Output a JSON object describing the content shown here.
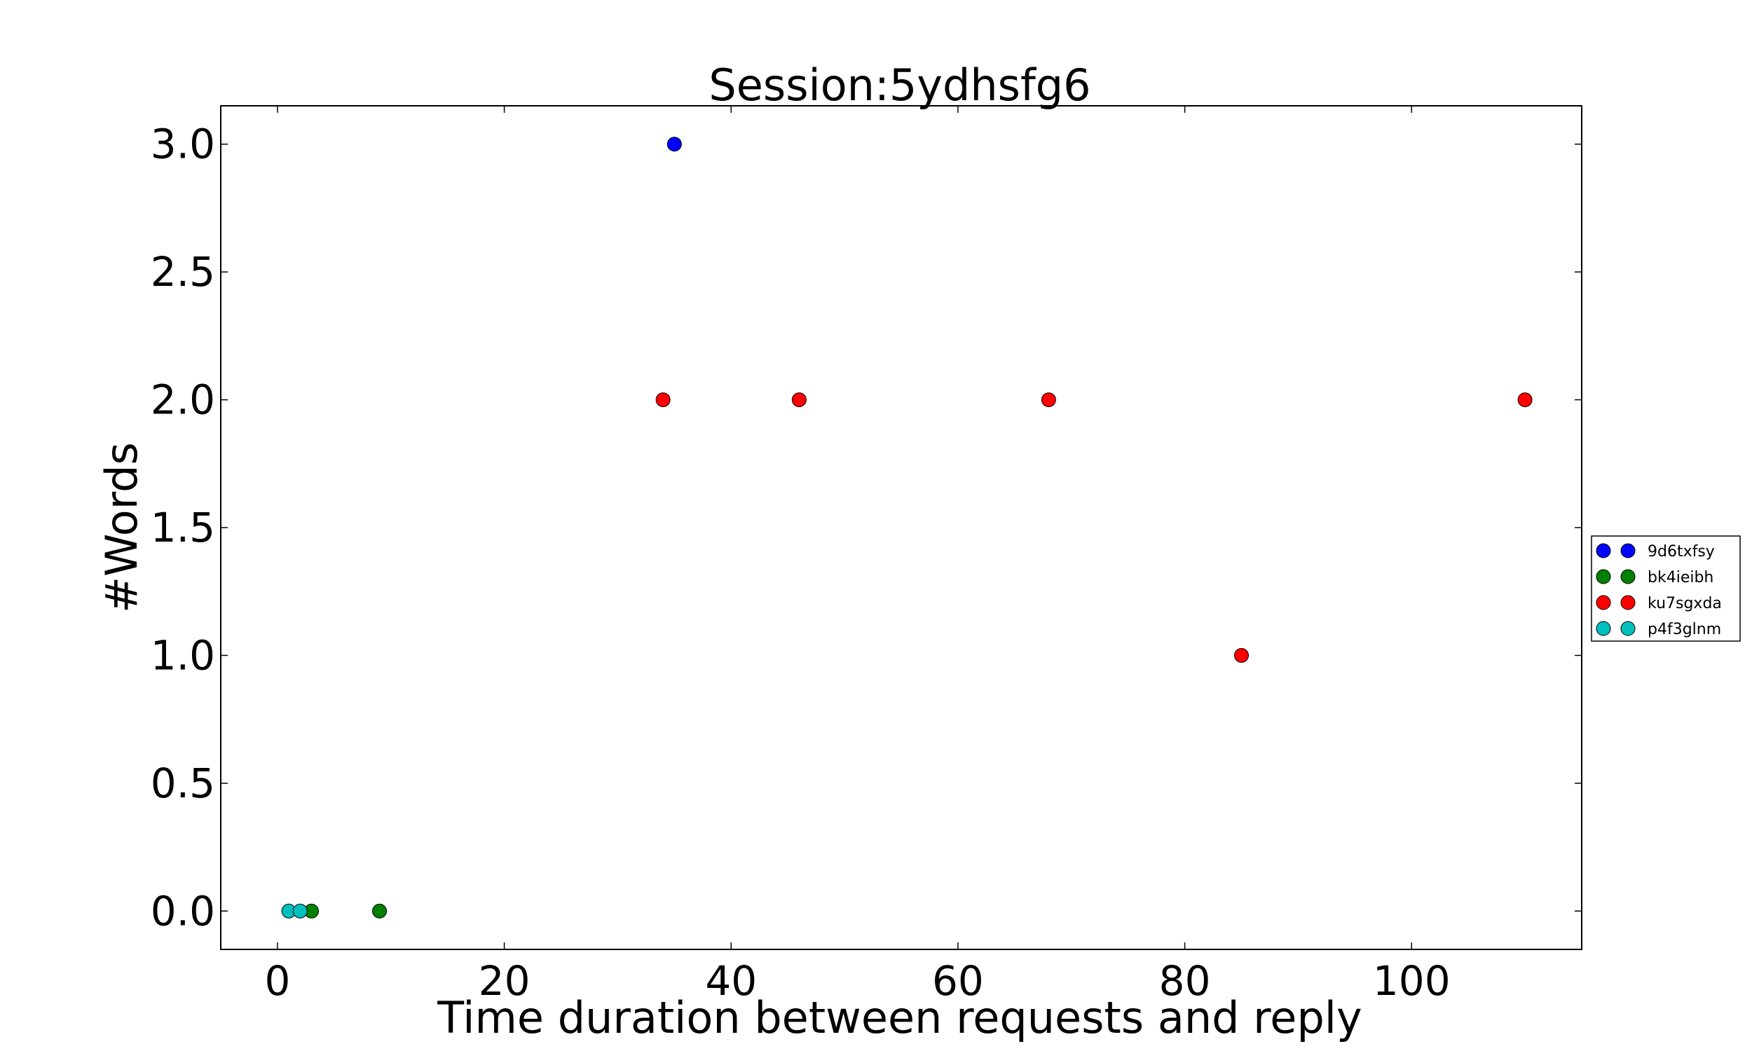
{
  "chart_data": {
    "type": "scatter",
    "title": "Session:5ydhsfg6",
    "xlabel": "Time duration between requests and reply",
    "ylabel": "#Words",
    "xlim": [
      -5,
      115
    ],
    "ylim": [
      -0.15,
      3.15
    ],
    "xticks": [
      0,
      20,
      40,
      60,
      80,
      100
    ],
    "yticks": [
      0.0,
      0.5,
      1.0,
      1.5,
      2.0,
      2.5,
      3.0
    ],
    "xtick_labels": [
      "0",
      "20",
      "40",
      "60",
      "80",
      "100"
    ],
    "ytick_labels": [
      "0.0",
      "0.5",
      "1.0",
      "1.5",
      "2.0",
      "2.5",
      "3.0"
    ],
    "grid": false,
    "legend_position": "right",
    "series": [
      {
        "name": "9d6txfsy",
        "color": "#0000ff",
        "points": [
          [
            35,
            3
          ]
        ]
      },
      {
        "name": "bk4ieibh",
        "color": "#008000",
        "points": [
          [
            3,
            0
          ],
          [
            9,
            0
          ]
        ]
      },
      {
        "name": "ku7sgxda",
        "color": "#ff0000",
        "points": [
          [
            34,
            2
          ],
          [
            46,
            2
          ],
          [
            68,
            2
          ],
          [
            85,
            1
          ],
          [
            110,
            2
          ]
        ]
      },
      {
        "name": "p4f3glnm",
        "color": "#00bfbf",
        "points": [
          [
            1,
            0
          ],
          [
            2,
            0
          ]
        ]
      }
    ]
  }
}
